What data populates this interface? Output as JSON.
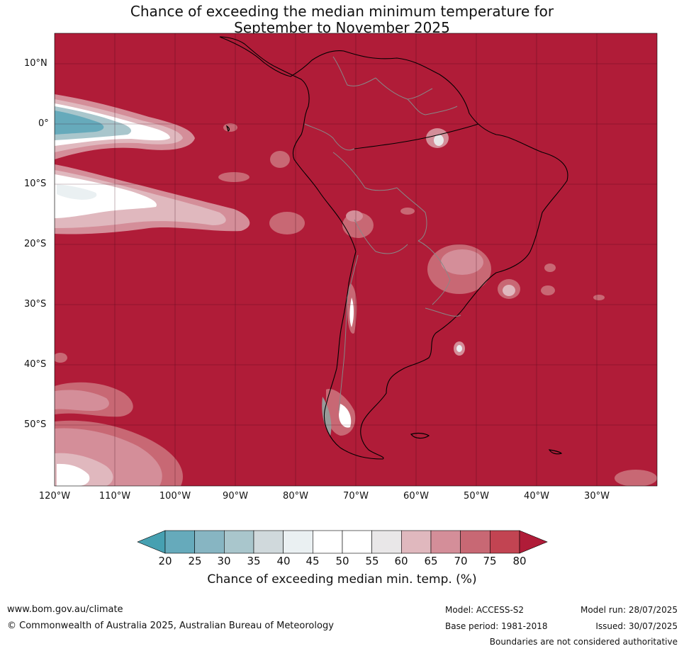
{
  "title": {
    "line1": "Chance of exceeding the median minimum temperature for",
    "line2": "September to November 2025"
  },
  "map": {
    "lat_labels": [
      "10°N",
      "0°",
      "10°S",
      "20°S",
      "30°S",
      "40°S",
      "50°S"
    ],
    "lon_labels": [
      "120°W",
      "110°W",
      "100°W",
      "90°W",
      "80°W",
      "70°W",
      "60°W",
      "50°W",
      "40°W",
      "30°W"
    ],
    "colors": {
      "c80": "#b01c38",
      "c75": "#c24452",
      "c70": "#c86874",
      "c65": "#d48e99",
      "c60": "#e0b8be",
      "c55": "#e9e7e8",
      "c50": "#ffffff",
      "c45": "#eaf0f2",
      "c40": "#d0d9dc",
      "c35": "#a9c6cc",
      "c30": "#87b5c2",
      "c25": "#66aabb",
      "c20": "#46a0b1"
    }
  },
  "colorbar": {
    "ticks": [
      "20",
      "25",
      "30",
      "35",
      "40",
      "45",
      "50",
      "55",
      "60",
      "65",
      "70",
      "75",
      "80"
    ],
    "colors": [
      "#66aabb",
      "#87b5c2",
      "#a9c6cc",
      "#d0d9dc",
      "#eaf0f2",
      "#ffffff",
      "#ffffff",
      "#e9e7e8",
      "#e0b8be",
      "#d48e99",
      "#c86874",
      "#c24452"
    ],
    "low_extend_color": "#46a0b1",
    "high_extend_color": "#b01c38",
    "label": "Chance of exceeding median min. temp. (%)"
  },
  "footer": {
    "url": "www.bom.gov.au/climate",
    "copyright": "© Commonwealth of Australia 2025, Australian Bureau of Meteorology",
    "model": "Model: ACCESS-S2",
    "base_period": "Base period: 1981-2018",
    "model_run": "Model run: 28/07/2025",
    "issued": "Issued: 30/07/2025",
    "disclaimer": "Boundaries are not considered authoritative"
  }
}
